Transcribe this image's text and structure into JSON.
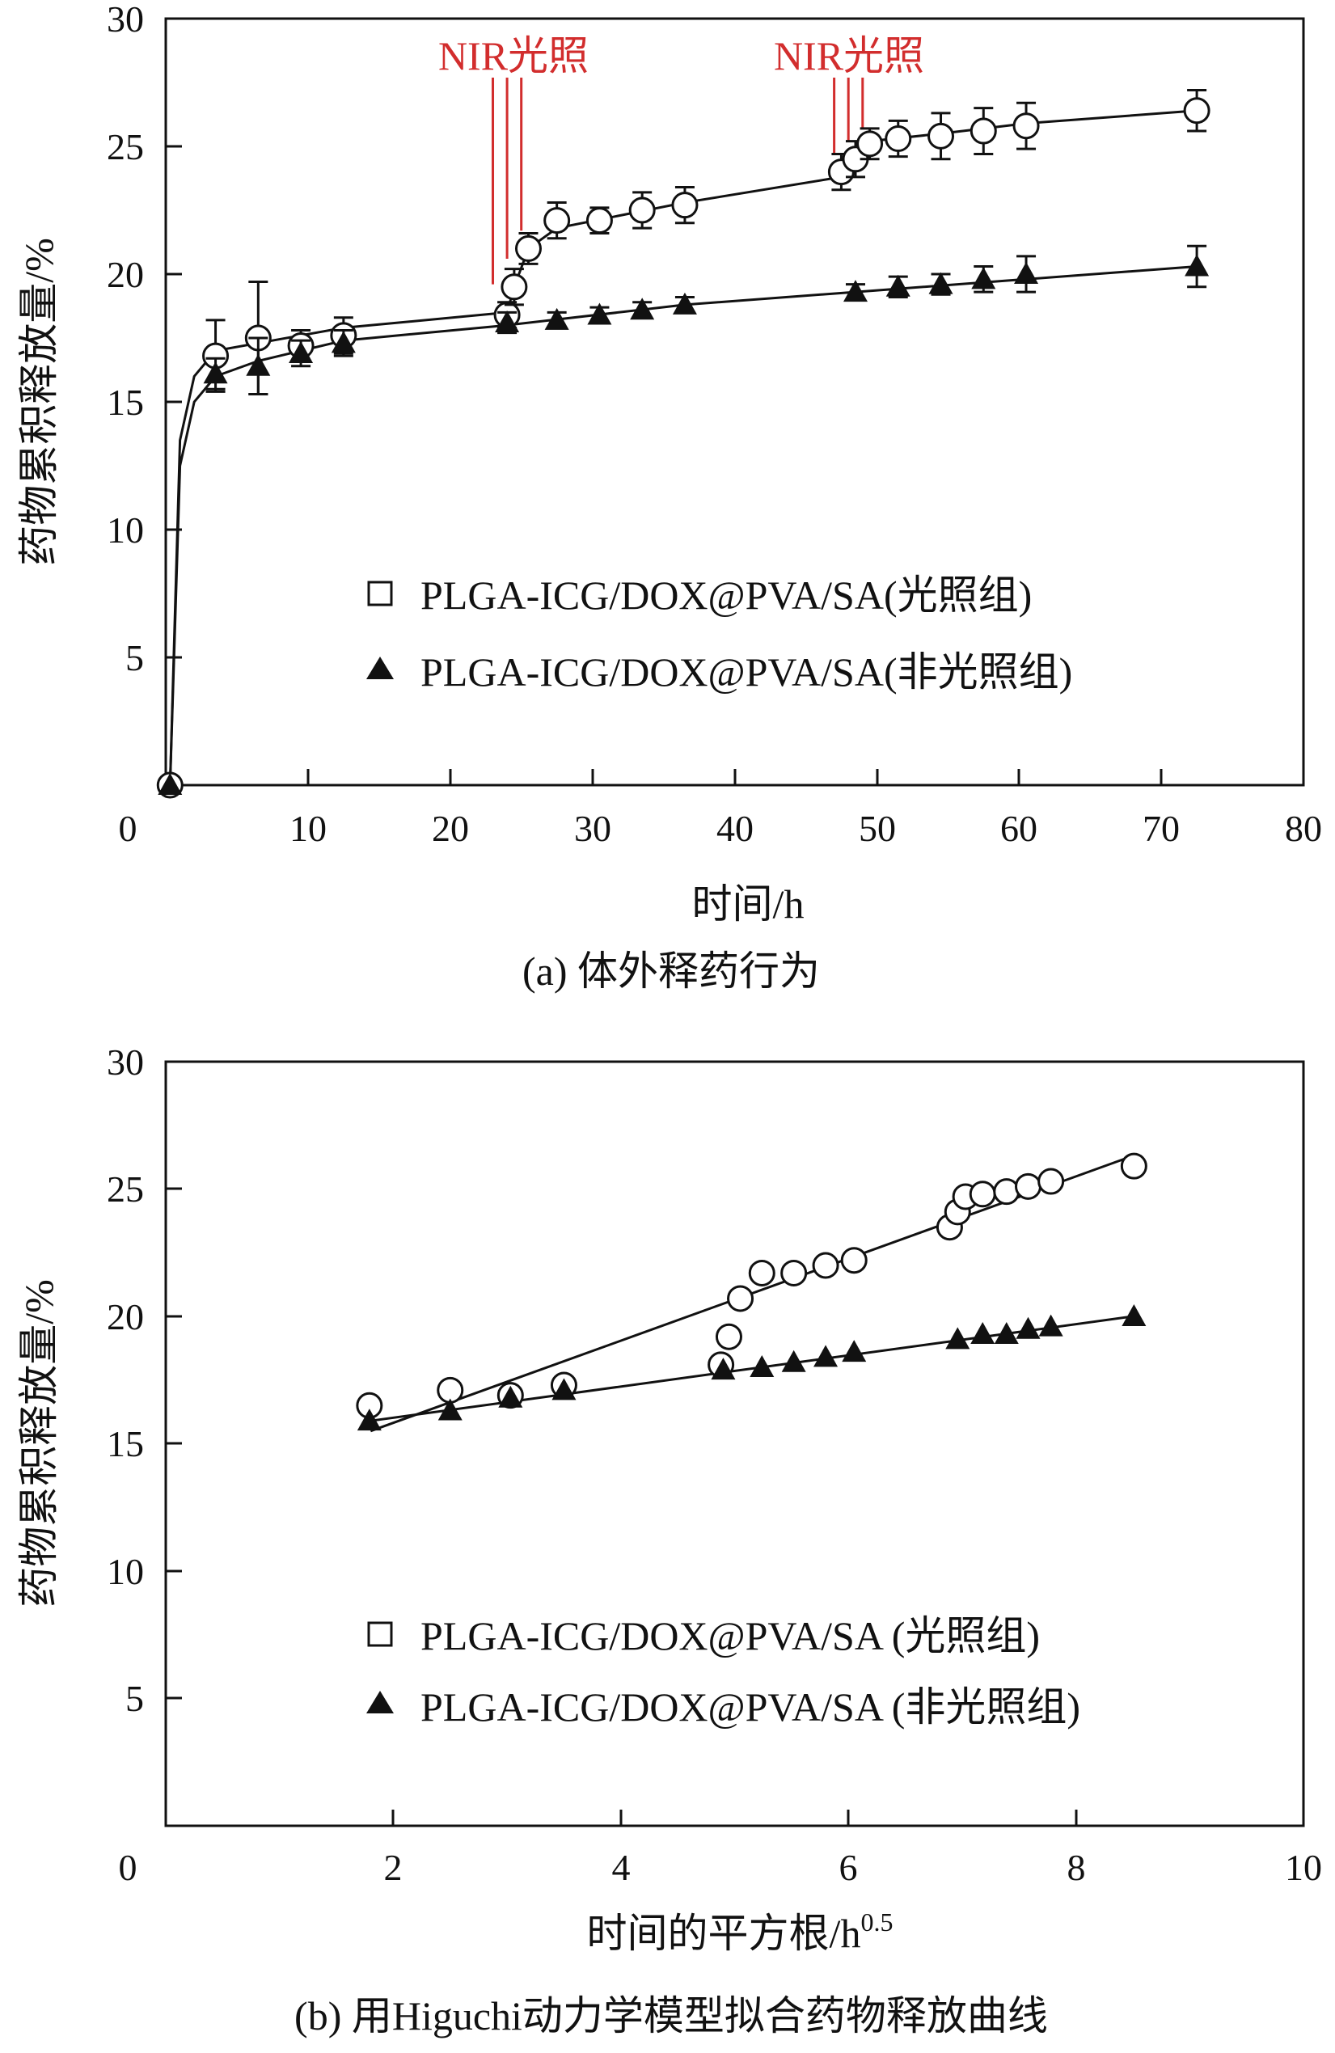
{
  "chart_data": [
    {
      "type": "scatter",
      "panel": "a",
      "caption": "(a) 体外释药行为",
      "xlabel": "时间/h",
      "ylabel": "药物累积释放量/%",
      "xlim": [
        0,
        80
      ],
      "ylim": [
        0,
        30
      ],
      "xticks": [
        "0",
        "10",
        "20",
        "30",
        "40",
        "50",
        "60",
        "70",
        "80"
      ],
      "yticks": [
        "5",
        "10",
        "15",
        "20",
        "25",
        "30"
      ],
      "annotations": [
        {
          "text": "NIR光照",
          "x": [
            23,
            24,
            25
          ]
        },
        {
          "text": "NIR光照",
          "x": [
            47,
            48,
            49
          ]
        }
      ],
      "series": [
        {
          "name": "PLGA-ICG/DOX@PVA/SA(光照组)",
          "marker": "circle",
          "x": [
            0.3,
            3.5,
            6.5,
            9.5,
            12.5,
            24,
            24.5,
            25.5,
            27.5,
            30.5,
            33.5,
            36.5,
            47.5,
            48.5,
            49.5,
            51.5,
            54.5,
            57.5,
            60.5,
            72.5
          ],
          "y": [
            0,
            16.8,
            17.5,
            17.2,
            17.6,
            18.4,
            19.5,
            21.0,
            22.1,
            22.1,
            22.5,
            22.7,
            24.0,
            24.5,
            25.1,
            25.3,
            25.4,
            25.6,
            25.8,
            26.4
          ],
          "err": [
            0,
            1.4,
            2.2,
            0.6,
            0.7,
            0.5,
            0.7,
            0.6,
            0.7,
            0.5,
            0.7,
            0.7,
            0.7,
            0.7,
            0.6,
            0.7,
            0.9,
            0.9,
            0.9,
            0.8
          ],
          "fit_x": [
            0.3,
            1,
            2,
            3.5,
            6.5,
            9.5,
            12.5,
            24,
            24.5,
            25.5,
            27.5,
            36.5,
            47.5,
            48.5,
            49.5,
            54.5,
            60.5,
            72.5
          ],
          "fit_y": [
            0,
            13.5,
            16.0,
            17.0,
            17.3,
            17.6,
            17.9,
            18.5,
            19.5,
            21.0,
            21.8,
            22.8,
            23.8,
            24.5,
            25.2,
            25.5,
            25.9,
            26.4
          ]
        },
        {
          "name": "PLGA-ICG/DOX@PVA/SA(非光照组)",
          "marker": "triangle",
          "x": [
            0.3,
            3.5,
            6.5,
            9.5,
            12.5,
            24,
            27.5,
            30.5,
            33.5,
            36.5,
            48.5,
            51.5,
            54.5,
            57.5,
            60.5,
            72.5
          ],
          "y": [
            0,
            16.1,
            16.4,
            16.9,
            17.3,
            18.1,
            18.2,
            18.4,
            18.6,
            18.8,
            19.3,
            19.5,
            19.6,
            19.8,
            20.0,
            20.3
          ],
          "err": [
            0,
            0.6,
            1.1,
            0.5,
            0.5,
            0.4,
            0.3,
            0.3,
            0.3,
            0.3,
            0.3,
            0.4,
            0.4,
            0.5,
            0.7,
            0.8
          ],
          "fit_x": [
            0.3,
            1,
            2,
            3.5,
            6.5,
            9.5,
            12.5,
            24,
            36.5,
            48.5,
            60.5,
            72.5
          ],
          "fit_y": [
            0,
            12.5,
            15.0,
            16.0,
            16.6,
            17.0,
            17.4,
            18.0,
            18.8,
            19.3,
            19.8,
            20.3
          ]
        }
      ]
    },
    {
      "type": "scatter",
      "panel": "b",
      "caption": "(b) 用Higuchi动力学模型拟合药物释放曲线",
      "xlabel": "时间的平方根/h",
      "xlabel_sup": "0.5",
      "ylabel": "药物累积释放量/%",
      "xlim": [
        0,
        10
      ],
      "ylim": [
        0,
        30
      ],
      "xticks": [
        "0",
        "2",
        "4",
        "6",
        "8",
        "10"
      ],
      "yticks": [
        "5",
        "10",
        "15",
        "20",
        "25",
        "30"
      ],
      "series": [
        {
          "name": "PLGA-ICG/DOX@PVA/SA (光照组)",
          "marker": "circle",
          "x": [
            1.79,
            2.5,
            3.03,
            3.5,
            4.88,
            4.95,
            5.05,
            5.24,
            5.52,
            5.8,
            6.05,
            6.89,
            6.96,
            7.03,
            7.18,
            7.39,
            7.58,
            7.78,
            8.51
          ],
          "y": [
            16.5,
            17.1,
            16.9,
            17.3,
            18.1,
            19.2,
            20.7,
            21.7,
            21.7,
            22.0,
            22.2,
            23.5,
            24.1,
            24.7,
            24.8,
            24.9,
            25.1,
            25.3,
            25.9
          ],
          "fit_x": [
            1.8,
            8.5
          ],
          "fit_y": [
            15.5,
            26.3
          ]
        },
        {
          "name": "PLGA-ICG/DOX@PVA/SA (非光照组)",
          "marker": "triangle",
          "x": [
            1.79,
            2.5,
            3.03,
            3.5,
            4.9,
            5.24,
            5.52,
            5.8,
            6.05,
            6.96,
            7.18,
            7.39,
            7.58,
            7.78,
            8.51
          ],
          "y": [
            15.9,
            16.3,
            16.8,
            17.1,
            17.9,
            18.0,
            18.2,
            18.4,
            18.6,
            19.1,
            19.3,
            19.3,
            19.5,
            19.6,
            20.0
          ],
          "fit_x": [
            1.8,
            8.5
          ],
          "fit_y": [
            15.9,
            20.0
          ]
        }
      ]
    }
  ]
}
